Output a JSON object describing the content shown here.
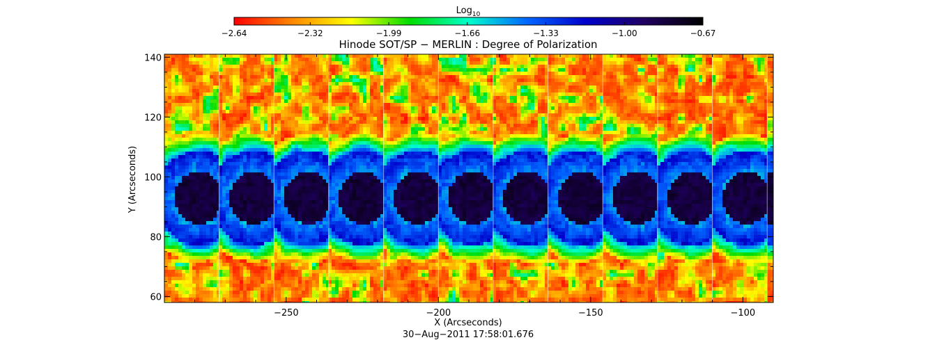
{
  "chart_data": {
    "type": "heatmap",
    "title": "Hinode SOT/SP − MERLIN : Degree of Polarization",
    "xlabel": "X (Arcseconds)",
    "ylabel": "Y (Arcseconds)",
    "xlim": [
      -290,
      -90
    ],
    "ylim": [
      58,
      141
    ],
    "x_ticks": [
      -250,
      -200,
      -150,
      -100
    ],
    "y_ticks": [
      60,
      80,
      100,
      120,
      140
    ],
    "date_label": "30−Aug−2011 17:58:01.676",
    "colorbar": {
      "title_base": "Log",
      "title_sub": "10",
      "min": -2.64,
      "max": -0.67,
      "tick_labels": [
        "−2.64",
        "−2.32",
        "−1.99",
        "−1.66",
        "−1.33",
        "−1.00",
        "−0.67"
      ],
      "tick_values": [
        -2.64,
        -2.32,
        -1.99,
        -1.66,
        -1.33,
        -1.0,
        -0.67
      ],
      "colors": [
        "#ff0000",
        "#ff8800",
        "#ffff00",
        "#00dd00",
        "#00ffcc",
        "#0066ff",
        "#0000cc",
        "#200060",
        "#000000"
      ]
    },
    "panel_edges_x": [
      -290,
      -272,
      -254,
      -236,
      -218,
      -200,
      -182,
      -164,
      -146,
      -128,
      -110,
      -92,
      -90
    ],
    "umbra_center_y": 93,
    "field": {
      "quiet_sun_value": -2.5,
      "umbra_core_value": -0.75,
      "penumbra_value": -1.2
    }
  }
}
